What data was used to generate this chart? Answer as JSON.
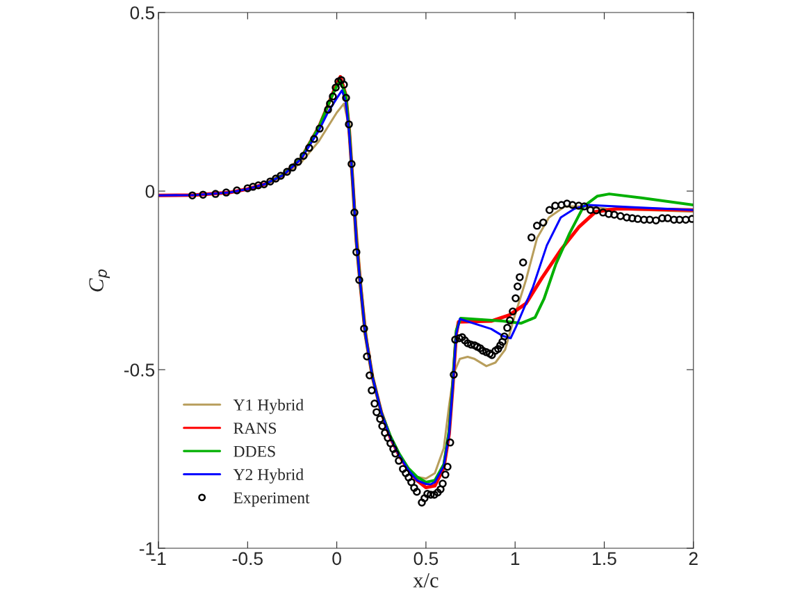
{
  "chart_data": {
    "type": "line",
    "xlabel": "x/c",
    "ylabel": "C$_{p}$",
    "xlim": [
      -1,
      2
    ],
    "ylim": [
      -1,
      0.5
    ],
    "xticks": [
      -1,
      -0.5,
      0,
      0.5,
      1,
      1.5,
      2
    ],
    "yticks": [
      -1,
      -0.5,
      0,
      0.5
    ],
    "grid": false,
    "legend": "bottom left",
    "series": [
      {
        "name": "Y1 Hybrid",
        "color": "#b89e5c",
        "x": [
          -1,
          -0.8,
          -0.6,
          -0.5,
          -0.4,
          -0.3,
          -0.2,
          -0.1,
          -0.05,
          0.0,
          0.04,
          0.06,
          0.08,
          0.1,
          0.12,
          0.14,
          0.17,
          0.2,
          0.25,
          0.3,
          0.35,
          0.4,
          0.45,
          0.5,
          0.55,
          0.6,
          0.63,
          0.656,
          0.69,
          0.734,
          0.773,
          0.839,
          0.89,
          0.944,
          0.995,
          1.061,
          1.123,
          1.19,
          1.279,
          1.384,
          1.513,
          2.0
        ],
        "values": [
          -0.012,
          -0.011,
          -0.004,
          0.006,
          0.02,
          0.043,
          0.08,
          0.14,
          0.18,
          0.22,
          0.245,
          0.2,
          0.1,
          -0.04,
          -0.16,
          -0.28,
          -0.42,
          -0.52,
          -0.62,
          -0.69,
          -0.74,
          -0.775,
          -0.8,
          -0.805,
          -0.79,
          -0.72,
          -0.6,
          -0.51,
          -0.47,
          -0.464,
          -0.47,
          -0.49,
          -0.48,
          -0.444,
          -0.354,
          -0.249,
          -0.132,
          -0.074,
          -0.043,
          -0.043,
          -0.049,
          -0.058
        ]
      },
      {
        "name": "RANS",
        "color": "#ff0000",
        "x": [
          -1,
          -0.8,
          -0.6,
          -0.5,
          -0.4,
          -0.3,
          -0.2,
          -0.1,
          -0.05,
          0.0,
          0.02,
          0.05,
          0.07,
          0.09,
          0.11,
          0.13,
          0.16,
          0.2,
          0.25,
          0.3,
          0.35,
          0.4,
          0.45,
          0.5,
          0.55,
          0.6,
          0.63,
          0.65,
          0.67,
          0.683,
          0.866,
          0.968,
          1.061,
          1.151,
          1.256,
          1.357,
          1.451,
          1.579,
          2.0
        ],
        "values": [
          -0.012,
          -0.011,
          -0.004,
          0.006,
          0.02,
          0.046,
          0.092,
          0.18,
          0.24,
          0.3,
          0.32,
          0.27,
          0.17,
          0.02,
          -0.14,
          -0.25,
          -0.4,
          -0.52,
          -0.62,
          -0.69,
          -0.74,
          -0.78,
          -0.81,
          -0.83,
          -0.825,
          -0.775,
          -0.68,
          -0.55,
          -0.4,
          -0.366,
          -0.364,
          -0.347,
          -0.315,
          -0.243,
          -0.165,
          -0.101,
          -0.058,
          -0.049,
          -0.053
        ]
      },
      {
        "name": "DDES",
        "color": "#00b000",
        "x": [
          -0.4,
          -0.3,
          -0.2,
          -0.1,
          -0.05,
          0.0,
          0.02,
          0.05,
          0.07,
          0.09,
          0.11,
          0.13,
          0.16,
          0.2,
          0.25,
          0.3,
          0.35,
          0.4,
          0.45,
          0.5,
          0.55,
          0.6,
          0.63,
          0.65,
          0.67,
          0.695,
          0.929,
          1.034,
          1.112,
          1.162,
          1.229,
          1.307,
          1.384,
          1.462,
          1.528,
          1.708,
          2.0
        ],
        "values": [
          0.02,
          0.046,
          0.092,
          0.18,
          0.24,
          0.295,
          0.31,
          0.27,
          0.17,
          0.02,
          -0.14,
          -0.25,
          -0.4,
          -0.52,
          -0.62,
          -0.685,
          -0.735,
          -0.775,
          -0.8,
          -0.815,
          -0.81,
          -0.765,
          -0.67,
          -0.54,
          -0.39,
          -0.356,
          -0.364,
          -0.37,
          -0.354,
          -0.302,
          -0.204,
          -0.117,
          -0.043,
          -0.014,
          -0.008,
          -0.019,
          -0.039
        ]
      },
      {
        "name": "Y2 Hybrid",
        "color": "#0000ff",
        "x": [
          -1,
          -0.8,
          -0.6,
          -0.5,
          -0.4,
          -0.3,
          -0.2,
          -0.1,
          -0.05,
          0.0,
          0.029,
          0.05,
          0.07,
          0.09,
          0.11,
          0.13,
          0.16,
          0.2,
          0.25,
          0.3,
          0.35,
          0.4,
          0.45,
          0.5,
          0.527,
          0.55,
          0.6,
          0.63,
          0.65,
          0.67,
          0.69,
          0.866,
          0.929,
          0.975,
          1.006,
          1.1,
          1.178,
          1.256,
          1.334,
          1.412,
          1.646,
          2.0
        ],
        "values": [
          -0.012,
          -0.011,
          -0.004,
          0.006,
          0.02,
          0.045,
          0.09,
          0.17,
          0.22,
          0.26,
          0.282,
          0.25,
          0.16,
          0.02,
          -0.14,
          -0.25,
          -0.4,
          -0.52,
          -0.62,
          -0.69,
          -0.74,
          -0.78,
          -0.81,
          -0.82,
          -0.821,
          -0.815,
          -0.77,
          -0.68,
          -0.55,
          -0.4,
          -0.358,
          -0.386,
          -0.405,
          -0.412,
          -0.379,
          -0.269,
          -0.152,
          -0.074,
          -0.049,
          -0.039,
          -0.045,
          -0.053
        ]
      },
      {
        "name": "Experiment",
        "color": "#000000",
        "type": "scatter",
        "marker": "circle",
        "x": [
          -0.81,
          -0.75,
          -0.68,
          -0.62,
          -0.56,
          -0.5,
          -0.47,
          -0.44,
          -0.408,
          -0.373,
          -0.342,
          -0.314,
          -0.279,
          -0.248,
          -0.217,
          -0.186,
          -0.155,
          -0.127,
          -0.096,
          -0.049,
          -0.038,
          -0.022,
          -0.006,
          0.009,
          0.025,
          0.04,
          0.052,
          0.068,
          0.083,
          0.099,
          0.11,
          0.126,
          0.153,
          0.169,
          0.184,
          0.196,
          0.212,
          0.223,
          0.243,
          0.255,
          0.27,
          0.286,
          0.301,
          0.317,
          0.329,
          0.348,
          0.371,
          0.387,
          0.403,
          0.418,
          0.434,
          0.449,
          0.477,
          0.492,
          0.508,
          0.527,
          0.547,
          0.566,
          0.582,
          0.594,
          0.609,
          0.621,
          0.636,
          0.656,
          0.664,
          0.687,
          0.703,
          0.718,
          0.734,
          0.753,
          0.773,
          0.788,
          0.804,
          0.819,
          0.839,
          0.858,
          0.87,
          0.89,
          0.905,
          0.917,
          0.929,
          0.94,
          0.956,
          0.971,
          0.987,
          1.003,
          1.014,
          1.026,
          1.045,
          1.092,
          1.123,
          1.158,
          1.193,
          1.225,
          1.26,
          1.291,
          1.322,
          1.357,
          1.388,
          1.423,
          1.455,
          1.493,
          1.525,
          1.556,
          1.591,
          1.626,
          1.657,
          1.688,
          1.723,
          1.755,
          1.79,
          1.825,
          1.856,
          1.891,
          1.922,
          1.957,
          1.992
        ],
        "values": [
          -0.012,
          -0.01,
          -0.008,
          -0.004,
          0.002,
          0.008,
          0.012,
          0.016,
          0.019,
          0.027,
          0.035,
          0.043,
          0.054,
          0.066,
          0.082,
          0.099,
          0.121,
          0.146,
          0.175,
          0.228,
          0.245,
          0.265,
          0.29,
          0.307,
          0.311,
          0.298,
          0.261,
          0.187,
          0.076,
          -0.06,
          -0.171,
          -0.249,
          -0.385,
          -0.463,
          -0.516,
          -0.558,
          -0.595,
          -0.619,
          -0.638,
          -0.658,
          -0.677,
          -0.691,
          -0.706,
          -0.722,
          -0.735,
          -0.755,
          -0.778,
          -0.79,
          -0.802,
          -0.815,
          -0.831,
          -0.842,
          -0.872,
          -0.86,
          -0.848,
          -0.85,
          -0.85,
          -0.844,
          -0.835,
          -0.819,
          -0.794,
          -0.772,
          -0.704,
          -0.514,
          -0.416,
          -0.412,
          -0.409,
          -0.418,
          -0.426,
          -0.43,
          -0.432,
          -0.436,
          -0.44,
          -0.447,
          -0.451,
          -0.455,
          -0.459,
          -0.447,
          -0.442,
          -0.432,
          -0.422,
          -0.407,
          -0.383,
          -0.362,
          -0.337,
          -0.3,
          -0.267,
          -0.241,
          -0.2,
          -0.13,
          -0.097,
          -0.088,
          -0.053,
          -0.041,
          -0.039,
          -0.035,
          -0.039,
          -0.041,
          -0.043,
          -0.053,
          -0.054,
          -0.06,
          -0.064,
          -0.066,
          -0.07,
          -0.074,
          -0.076,
          -0.078,
          -0.08,
          -0.08,
          -0.082,
          -0.076,
          -0.076,
          -0.08,
          -0.08,
          -0.08,
          -0.078
        ]
      }
    ]
  }
}
